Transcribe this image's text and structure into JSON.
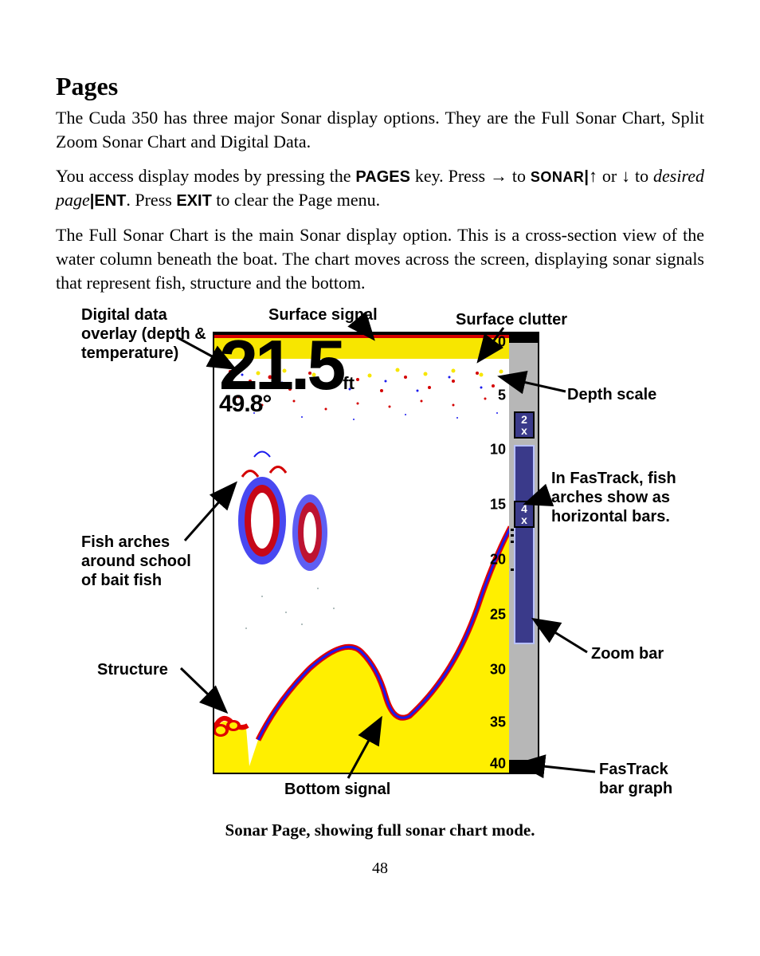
{
  "heading": "Pages",
  "para1_a": "The Cuda 350 has three major Sonar display options. They are the Full Sonar Chart, Split Zoom Sonar Chart and Digital Data.",
  "para2": {
    "a": "You access display modes by pressing the ",
    "pages": "PAGES",
    "b": " key. Press ",
    "arrow_r": "→",
    "c": " to ",
    "sonar": "SONAR",
    "pipe1": "|",
    "arrow_u": "↑",
    "d": " or ",
    "arrow_d": "↓",
    "e": " to ",
    "desired": "desired page",
    "pipe2": "|",
    "ent": "ENT",
    "f": ". Press ",
    "exit": "EXIT",
    "g": " to clear the Page menu."
  },
  "para3": "The Full Sonar Chart is the main Sonar display option. This is a cross-section view of the water column beneath the boat. The chart moves across the screen, displaying sonar signals that represent fish, structure and the bottom.",
  "annotations": {
    "digital": "Digital data overlay (depth & temperature)",
    "surface_signal": "Surface signal",
    "surface_clutter": "Surface clutter",
    "depth_scale": "Depth scale",
    "fastrack_note": "In FasTrack, fish arches show as horizontal bars.",
    "fish_arches": "Fish arches around school of bait fish",
    "structure": "Structure",
    "zoom_bar": "Zoom bar",
    "bottom_signal": "Bottom signal",
    "fastrack_bar": "FasTrack bar graph"
  },
  "sonar": {
    "depth_value": "21.5",
    "depth_unit": "ft",
    "temperature": "49.8°",
    "depth_ticks": [
      "0",
      "5",
      "10",
      "15",
      "20",
      "25",
      "30",
      "35",
      "40"
    ],
    "zoom_2x": "2\nx",
    "zoom_4x": "4\nx",
    "colors": {
      "clutter_yellow": "#f7e600",
      "clutter_red": "#d40000",
      "clutter_blue": "#1a1aee",
      "bottom_yellow": "#ffef00",
      "bottom_red": "#e00000",
      "vbar_grey": "#b7b7b7",
      "zoom_fill": "#3a3a8a"
    }
  },
  "caption": "Sonar Page, showing full sonar chart mode.",
  "page_number": "48"
}
